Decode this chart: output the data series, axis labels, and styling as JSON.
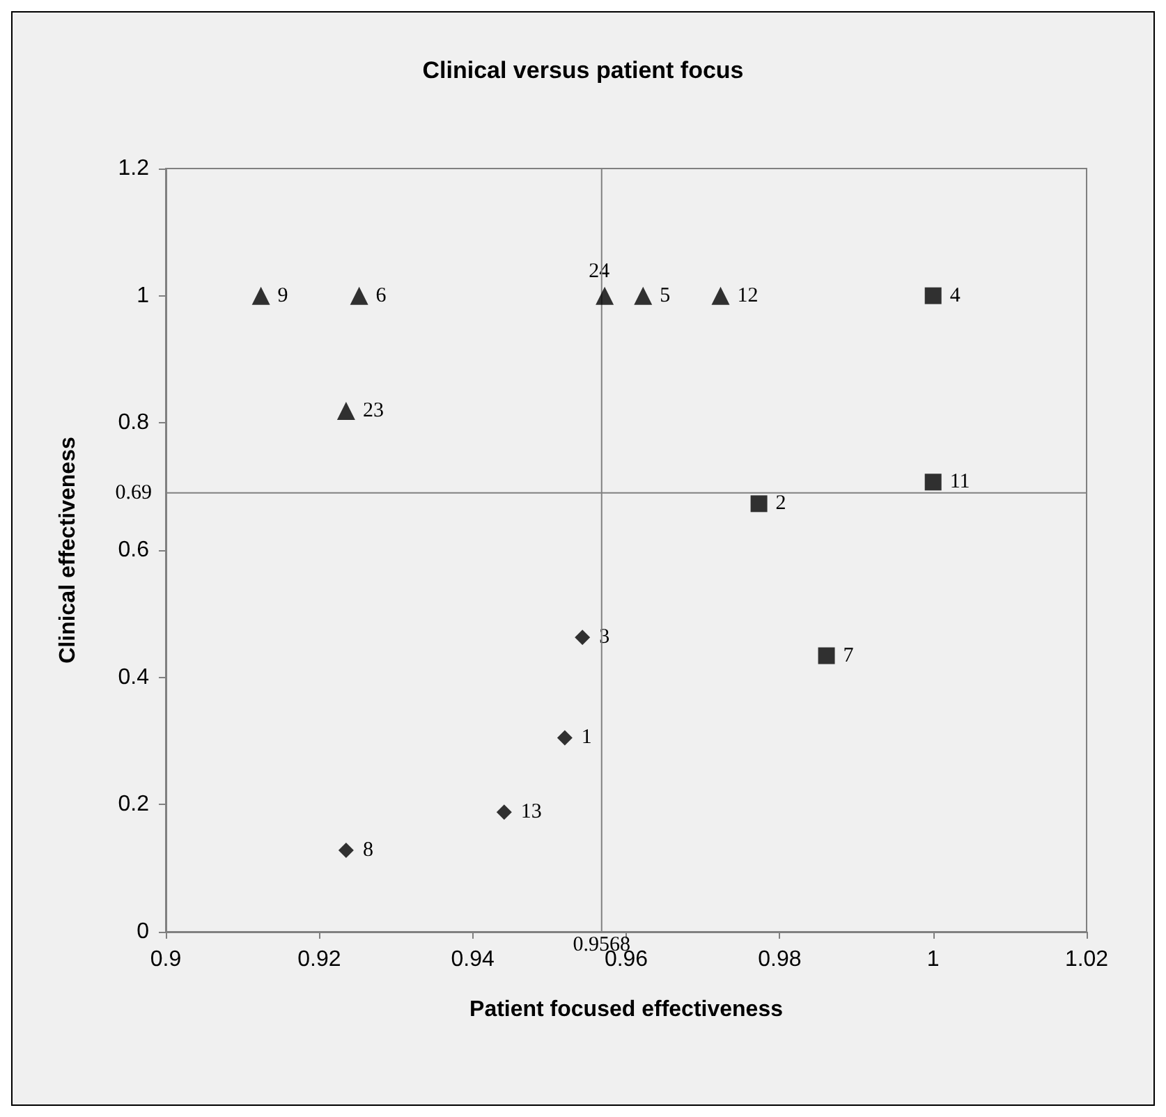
{
  "chart_data": {
    "type": "scatter",
    "title": "Clinical versus patient focus",
    "xlabel": "Patient focused effectiveness",
    "ylabel": "Clinical effectiveness",
    "xlim": [
      0.9,
      1.02
    ],
    "xticks": [
      0.9,
      0.92,
      0.94,
      0.96,
      0.98,
      1,
      1.02
    ],
    "ylim": [
      0,
      1.2
    ],
    "yticks": [
      0,
      0.2,
      0.4,
      0.6,
      0.8,
      1,
      1.2
    ],
    "series": [
      {
        "color": "#000000",
        "marker": "triangle",
        "x": [
          0.9124,
          0.9252,
          0.9235,
          0.9572,
          0.9622,
          0.9723
        ],
        "values": [
          1,
          1,
          0.819,
          1,
          1,
          1
        ]
      },
      {
        "color": "#000000",
        "marker": "square",
        "x": [
          1.0,
          1.0,
          0.9773,
          0.9861
        ],
        "values": [
          1,
          0.707,
          0.673,
          0.434
        ]
      },
      {
        "color": "#000000",
        "marker": "diamond",
        "x": [
          0.9543,
          0.952,
          0.9441,
          0.9235
        ],
        "values": [
          0.463,
          0.305,
          0.188,
          0.128
        ]
      }
    ],
    "annotations": [
      {
        "text": "9",
        "x": 0.9124,
        "y": 1
      },
      {
        "text": "6",
        "x": 0.9252,
        "y": 1
      },
      {
        "text": "23",
        "x": 0.9235,
        "y": 0.819
      },
      {
        "text": "24",
        "x": 0.9572,
        "y": 1
      },
      {
        "text": "5",
        "x": 0.9622,
        "y": 1
      },
      {
        "text": "12",
        "x": 0.9723,
        "y": 1
      },
      {
        "text": "4",
        "x": 1.0,
        "y": 1
      },
      {
        "text": "11",
        "x": 1.0,
        "y": 0.707
      },
      {
        "text": "2",
        "x": 0.9773,
        "y": 0.673
      },
      {
        "text": "7",
        "x": 0.9861,
        "y": 0.434
      },
      {
        "text": "3",
        "x": 0.9543,
        "y": 0.463
      },
      {
        "text": "1",
        "x": 0.952,
        "y": 0.305
      },
      {
        "text": "13",
        "x": 0.9441,
        "y": 0.188
      },
      {
        "text": "8",
        "x": 0.9235,
        "y": 0.128
      }
    ],
    "ref_lines": [
      {
        "axis": "x",
        "value": 0.9568,
        "label": "0.9568",
        "color": "#808080"
      },
      {
        "axis": "y",
        "value": 0.69,
        "label": "0.69",
        "color": "#808080"
      }
    ]
  }
}
